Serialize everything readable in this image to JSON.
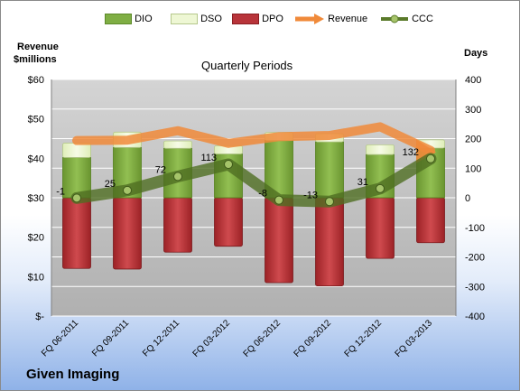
{
  "company": "Given Imaging",
  "chart_data": {
    "type": "bar",
    "subtitle": "Quarterly Periods",
    "categories": [
      "FQ 06-2011",
      "FQ 09-2011",
      "FQ 12-2011",
      "FQ 03-2012",
      "FQ 06-2012",
      "FQ 09-2012",
      "FQ 12-2012",
      "FQ 03-2013"
    ],
    "left_axis": {
      "label_line1": "Revenue",
      "label_line2": "$millions",
      "range": [
        0,
        60
      ],
      "ticks": [
        "$-",
        "$10",
        "$20",
        "$30",
        "$40",
        "$50",
        "$60"
      ]
    },
    "right_axis": {
      "label": "Days",
      "range": [
        -400,
        400
      ],
      "ticks": [
        "-400",
        "-300",
        "-200",
        "-100",
        "0",
        "100",
        "200",
        "300",
        "400"
      ]
    },
    "grid": true,
    "legend_position": "top",
    "series": [
      {
        "name": "DIO",
        "type": "stacked-bar",
        "color": "#76a33b",
        "values": [
          136,
          170,
          167,
          148,
          194,
          189,
          146,
          168
        ]
      },
      {
        "name": "DSO",
        "type": "stacked-bar",
        "color": "#e8f4c8",
        "values": [
          49,
          52,
          25,
          28,
          27,
          28,
          33,
          28
        ]
      },
      {
        "name": "DPO",
        "type": "bar-negative",
        "color": "#b22a2e",
        "values": [
          -239,
          -241,
          -184,
          -164,
          -287,
          -298,
          -205,
          -152
        ]
      },
      {
        "name": "Revenue",
        "type": "line",
        "axis": "left",
        "color": "#f08a3a",
        "values": [
          44.5,
          44.6,
          47,
          43.8,
          45.5,
          45.8,
          48,
          42
        ]
      },
      {
        "name": "CCC",
        "type": "line",
        "axis": "right",
        "color": "#5a7a2a",
        "values": [
          -1,
          25,
          72,
          113,
          -8,
          -13,
          31,
          132
        ]
      }
    ],
    "data_labels": [
      "-1",
      "25",
      "72",
      "113",
      "-8",
      "-13",
      "31",
      "132"
    ]
  },
  "legend": [
    {
      "name": "DIO",
      "icon": "dio-swatch"
    },
    {
      "name": "DSO",
      "icon": "dso-swatch"
    },
    {
      "name": "DPO",
      "icon": "dpo-swatch"
    },
    {
      "name": "Revenue",
      "icon": "revenue-arrow-icon"
    },
    {
      "name": "CCC",
      "icon": "ccc-line-icon"
    }
  ]
}
